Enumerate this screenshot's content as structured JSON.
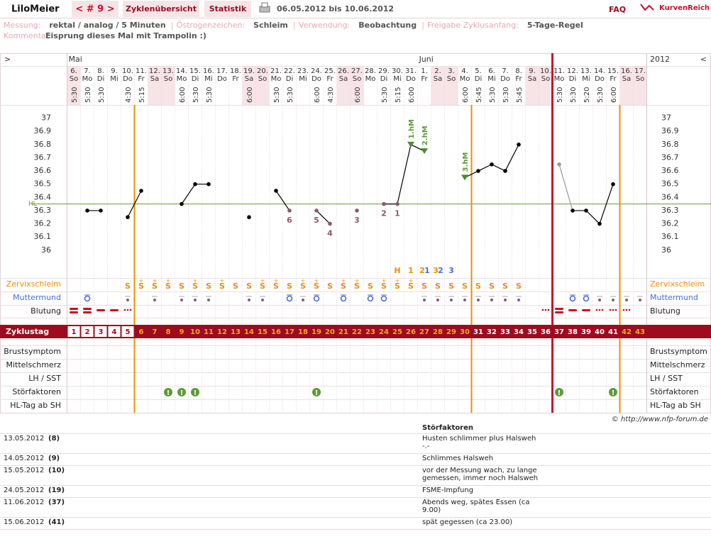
{
  "header": {
    "user": "LiloMeier",
    "cycle_nav": "< # 9 >",
    "tabs": [
      "Zyklenübersicht",
      "Statistik"
    ],
    "date_range": "06.05.2012 bis 10.06.2012",
    "faq": "FAQ",
    "logo": "KurvenReich"
  },
  "info": {
    "fields": [
      {
        "label": "Messung:",
        "value": "rektal / analog / 5 Minuten"
      },
      {
        "label": "Östrogenzeichen:",
        "value": "Schleim"
      },
      {
        "label": "Verwendung:",
        "value": "Beobachtung"
      },
      {
        "label": "Freigabe Zyklusanfang:",
        "value": "5-Tage-Regel"
      }
    ],
    "comment": {
      "label": "Kommentar:",
      "value": "Eisprung dieses Mal mit Trampolin :)"
    }
  },
  "chart_data": {
    "type": "line",
    "nav_left": ">",
    "nav_right": "<",
    "year": "2012",
    "months": [
      "Mai",
      "Juni"
    ],
    "month_start": [
      1,
      27
    ],
    "x": [
      1,
      2,
      3,
      4,
      5,
      6,
      7,
      8,
      9,
      10,
      11,
      12,
      13,
      14,
      15,
      16,
      17,
      18,
      19,
      20,
      21,
      22,
      23,
      24,
      25,
      26,
      27,
      28,
      29,
      30,
      31,
      32,
      33,
      34,
      35,
      36,
      37,
      38,
      39,
      40,
      41,
      42,
      43
    ],
    "dates": [
      "6.",
      "7.",
      "8.",
      "9.",
      "10.",
      "11.",
      "12.",
      "13.",
      "14.",
      "15.",
      "16.",
      "17.",
      "18.",
      "19.",
      "20.",
      "21.",
      "22.",
      "23.",
      "24.",
      "25.",
      "26.",
      "27.",
      "28.",
      "29.",
      "30.",
      "31.",
      "1.",
      "2.",
      "3.",
      "4.",
      "5.",
      "6.",
      "7.",
      "8.",
      "9.",
      "10.",
      "11.",
      "12.",
      "13.",
      "14.",
      "15.",
      "16.",
      "17."
    ],
    "weekdays": [
      "So",
      "Mo",
      "Di",
      "Mi",
      "Do",
      "Fr",
      "Sa",
      "So",
      "Mo",
      "Di",
      "Mi",
      "Do",
      "Fr",
      "Sa",
      "So",
      "Mo",
      "Di",
      "Mi",
      "Do",
      "Fr",
      "Sa",
      "So",
      "Mo",
      "Di",
      "Mi",
      "Do",
      "Fr",
      "Sa",
      "So",
      "Mo",
      "Di",
      "Mi",
      "Do",
      "Fr",
      "Sa",
      "So",
      "Mo",
      "Di",
      "Mi",
      "Do",
      "Fr",
      "Sa",
      "So"
    ],
    "times": [
      "5:30",
      "5:30",
      "5:30",
      null,
      "4:30",
      "5:15",
      null,
      null,
      "6:00",
      "5:30",
      "5:30",
      null,
      null,
      "6:00",
      null,
      "5:30",
      "5:30",
      null,
      "6:00",
      "4:30",
      null,
      "6:00",
      null,
      "5:30",
      "5:15",
      "6:00",
      null,
      null,
      null,
      "6:00",
      "5:45",
      "5:30",
      "5:30",
      "5:45",
      null,
      null,
      "5:30",
      "5:30",
      "5:20",
      "5:30",
      "6:00",
      null,
      null
    ],
    "values": [
      null,
      36.3,
      36.3,
      null,
      36.25,
      36.45,
      null,
      null,
      36.35,
      36.5,
      36.5,
      null,
      null,
      36.25,
      null,
      36.45,
      36.3,
      null,
      36.3,
      36.2,
      null,
      36.3,
      null,
      36.35,
      36.35,
      36.8,
      36.75,
      null,
      null,
      36.55,
      36.6,
      36.65,
      36.6,
      36.8,
      null,
      null,
      36.65,
      36.3,
      36.3,
      36.2,
      36.5,
      null,
      null
    ],
    "color": "#000000",
    "excluded_color": "#999999",
    "marker_colors": [
      null,
      "#000000",
      "#000000",
      null,
      "#000000",
      "#000000",
      null,
      null,
      "#000000",
      "#000000",
      "#000000",
      null,
      null,
      "#000000",
      null,
      "#000000",
      "#8a5a68",
      null,
      "#8a5a68",
      "#8a5a68",
      null,
      "#8a5a68",
      null,
      "#8a5a68",
      "#8a5a68",
      "#4e8b2e",
      "#4e8b2e",
      null,
      null,
      "#4e8b2e",
      "#000000",
      "#000000",
      "#000000",
      "#000000",
      null,
      null,
      "#999999",
      "#000000",
      "#000000",
      "#000000",
      "#000000",
      null,
      null
    ],
    "low_labels": [
      null,
      null,
      null,
      null,
      null,
      null,
      null,
      null,
      null,
      null,
      null,
      null,
      null,
      null,
      null,
      null,
      "6",
      null,
      "5",
      "4",
      null,
      "3",
      null,
      "2",
      "1",
      null,
      null,
      null,
      null,
      null,
      null,
      null,
      null,
      null,
      null,
      null,
      null,
      null,
      null,
      null,
      null,
      null,
      null
    ],
    "hm_labels": [
      null,
      null,
      null,
      null,
      null,
      null,
      null,
      null,
      null,
      null,
      null,
      null,
      null,
      null,
      null,
      null,
      null,
      null,
      null,
      null,
      null,
      null,
      null,
      null,
      null,
      "1.hM",
      "2.hM",
      null,
      null,
      "3.hM",
      null,
      null,
      null,
      null,
      null,
      null,
      null,
      null,
      null,
      null,
      null,
      null,
      null
    ],
    "ylim": [
      35.8,
      37.1
    ],
    "yticks": [
      37,
      36.9,
      36.8,
      36.7,
      36.6,
      36.5,
      36.4,
      36.3,
      36.2,
      36.1,
      36
    ],
    "cover_line": {
      "value": 36.35,
      "label": "HL"
    },
    "peak_labels": [
      null,
      null,
      null,
      null,
      null,
      null,
      null,
      null,
      null,
      null,
      null,
      null,
      null,
      null,
      null,
      null,
      null,
      null,
      null,
      null,
      null,
      null,
      null,
      null,
      "H",
      "1",
      "2",
      "3",
      null,
      null,
      null,
      null,
      null,
      null,
      null,
      null,
      null,
      null,
      null,
      null,
      null,
      null,
      null
    ],
    "cervix_peak_labels": [
      null,
      null,
      null,
      null,
      null,
      null,
      null,
      null,
      null,
      null,
      null,
      null,
      null,
      null,
      null,
      null,
      null,
      null,
      null,
      null,
      null,
      null,
      null,
      null,
      null,
      null,
      "1",
      "2",
      "3",
      null,
      null,
      null,
      null,
      null,
      null,
      null,
      null,
      null,
      null,
      null,
      null,
      null,
      null
    ],
    "mucus": [
      null,
      null,
      null,
      null,
      "S",
      "S",
      "S",
      "S",
      "S",
      "S",
      "S",
      "S",
      "S",
      "S",
      "S",
      "S",
      "S",
      "S",
      "S",
      "S",
      "S",
      "S",
      "S",
      "S",
      "S",
      "S",
      "S",
      "S",
      "S",
      "S",
      "S",
      "S",
      "S",
      "S",
      null,
      null,
      null,
      null,
      null,
      null,
      null,
      null,
      null
    ],
    "mucus_plus": [
      null,
      null,
      null,
      null,
      null,
      "+",
      "+",
      "+",
      null,
      "+",
      null,
      "+",
      null,
      null,
      "+",
      "+",
      null,
      "+",
      "+",
      null,
      "+",
      "+",
      null,
      "+",
      "+",
      "+",
      null,
      null,
      null,
      null,
      null,
      null,
      null,
      null,
      null,
      null,
      null,
      null,
      null,
      null,
      null,
      null,
      null
    ],
    "cycle_day_colors": [
      "#9e0b1f",
      "#9e0b1f",
      "#9e0b1f",
      "#9e0b1f",
      "#9e0b1f",
      "#f5a623",
      "#f5a623",
      "#f5a623",
      "#f5a623",
      "#f5a623",
      "#f5a623",
      "#f5a623",
      "#f5a623",
      "#f5a623",
      "#f5a623",
      "#f5a623",
      "#f5a623",
      "#f5a623",
      "#f5a623",
      "#f5a623",
      "#f5a623",
      "#f5a623",
      "#f5a623",
      "#f5a623",
      "#f5a623",
      "#f5a623",
      "#f5a623",
      "#f5a623",
      "#f5a623",
      "#f5a623",
      "#ffffff",
      "#ffffff",
      "#ffffff",
      "#ffffff",
      "#ffffff",
      "#ffffff",
      "#ffffff",
      "#ffffff",
      "#ffffff",
      "#ffffff",
      "#ffffff",
      "#f5a623",
      "#f5a623"
    ],
    "disturbance_flags": [
      null,
      null,
      null,
      null,
      null,
      null,
      null,
      "!",
      "!",
      "!",
      null,
      null,
      null,
      null,
      null,
      null,
      null,
      null,
      "!",
      null,
      null,
      null,
      null,
      null,
      null,
      null,
      null,
      null,
      null,
      null,
      null,
      null,
      null,
      null,
      null,
      null,
      "!",
      null,
      null,
      null,
      "!",
      null,
      null
    ],
    "vlines": [
      {
        "after": 5,
        "color": "#f28c00"
      },
      {
        "after": 30,
        "color": "#f28c00"
      },
      {
        "after": 36,
        "color": "#c8102e"
      },
      {
        "after": 41,
        "color": "#f28c00"
      }
    ],
    "row_labels": {
      "mucus": "Zervixschleim",
      "cervix": "Muttermund",
      "bleeding": "Blutung",
      "cycle_day": "Zyklustag",
      "breast": "Brustsymptom",
      "midpain": "Mittelschmerz",
      "lh": "LH / SST",
      "disturbance": "Störfaktoren",
      "hl_day": "HL-Tag ab SH"
    }
  },
  "copyright": "© http://www.nfp-forum.de",
  "disturbance_table": {
    "header": "Störfaktoren",
    "rows": [
      {
        "date": "13.05.2012",
        "day": "(8)",
        "lines": [
          "Husten schlimmer plus Halsweh",
          "-.-"
        ]
      },
      {
        "date": "14.05.2012",
        "day": "(9)",
        "lines": [
          "Schlimmes Halsweh"
        ]
      },
      {
        "date": "15.05.2012",
        "day": "(10)",
        "lines": [
          "vor der Messung wach, zu lange",
          "gemessen, immer noch Halsweh"
        ]
      },
      {
        "date": "24.05.2012",
        "day": "(19)",
        "lines": [
          "FSME-Impfung"
        ]
      },
      {
        "date": "11.06.2012",
        "day": "(37)",
        "lines": [
          "Abends weg, spätes Essen (ca",
          "9.00)"
        ]
      },
      {
        "date": "15.06.2012",
        "day": "(41)",
        "lines": [
          "spät gegessen (ca 23.00)"
        ]
      }
    ]
  }
}
